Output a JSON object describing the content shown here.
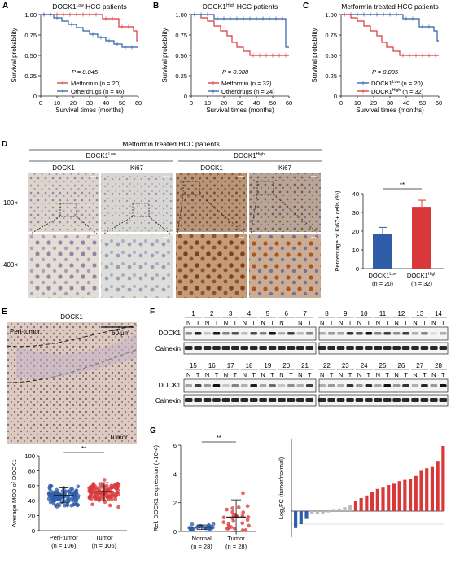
{
  "panels": {
    "A": "A",
    "B": "B",
    "C": "C",
    "D": "D",
    "E": "E",
    "F": "F",
    "G": "G"
  },
  "km": [
    {
      "letter": "A",
      "title": "DOCK1",
      "title_sup": "Low",
      "title_tail": " HCC patients",
      "ylabel": "Survival probability",
      "xlabel": "Survival times (months)",
      "xticks": [
        "0",
        "10",
        "20",
        "30",
        "40",
        "50",
        "60"
      ],
      "yticks": [
        "0",
        "0.25",
        "0.50",
        "0.75",
        "1.00"
      ],
      "pvalue": "P = 0.045",
      "legend": [
        {
          "name": "Metformin",
          "n": "(n = 20)",
          "color": "#d9383a"
        },
        {
          "name": "Otherdrugs",
          "n": "(n = 46)",
          "color": "#2f5da8"
        }
      ],
      "curves": [
        {
          "color": "#d9383a",
          "points": [
            [
              0,
              1.0
            ],
            [
              38,
              1.0
            ],
            [
              38,
              0.95
            ],
            [
              48,
              0.95
            ],
            [
              48,
              0.85
            ],
            [
              57,
              0.85
            ],
            [
              57,
              0.8
            ],
            [
              59,
              0.8
            ],
            [
              59,
              0.68
            ],
            [
              60,
              0.68
            ]
          ]
        },
        {
          "color": "#2f5da8",
          "points": [
            [
              0,
              1.0
            ],
            [
              8,
              1.0
            ],
            [
              8,
              0.96
            ],
            [
              13,
              0.96
            ],
            [
              13,
              0.92
            ],
            [
              17,
              0.92
            ],
            [
              17,
              0.88
            ],
            [
              22,
              0.88
            ],
            [
              22,
              0.84
            ],
            [
              26,
              0.84
            ],
            [
              26,
              0.8
            ],
            [
              30,
              0.8
            ],
            [
              30,
              0.76
            ],
            [
              35,
              0.76
            ],
            [
              35,
              0.72
            ],
            [
              40,
              0.72
            ],
            [
              40,
              0.68
            ],
            [
              45,
              0.68
            ],
            [
              45,
              0.64
            ],
            [
              50,
              0.64
            ],
            [
              50,
              0.6
            ],
            [
              60,
              0.6
            ]
          ]
        }
      ]
    },
    {
      "letter": "B",
      "title": "DOCK1",
      "title_sup": "High",
      "title_tail": " HCC patients",
      "ylabel": "Survival probability",
      "xlabel": "Survival times (months)",
      "xticks": [
        "0",
        "10",
        "20",
        "30",
        "40",
        "50",
        "60"
      ],
      "yticks": [
        "0",
        "0.25",
        "0.50",
        "0.75",
        "1.00"
      ],
      "pvalue": "P = 0.088",
      "legend": [
        {
          "name": "Metformin",
          "n": "(n = 32)",
          "color": "#d9383a"
        },
        {
          "name": "Otherdrugs",
          "n": "(n = 24)",
          "color": "#2f5da8"
        }
      ],
      "curves": [
        {
          "color": "#d9383a",
          "points": [
            [
              0,
              1.0
            ],
            [
              6,
              1.0
            ],
            [
              6,
              0.96
            ],
            [
              10,
              0.96
            ],
            [
              10,
              0.92
            ],
            [
              14,
              0.92
            ],
            [
              14,
              0.86
            ],
            [
              18,
              0.86
            ],
            [
              18,
              0.8
            ],
            [
              22,
              0.8
            ],
            [
              22,
              0.74
            ],
            [
              25,
              0.74
            ],
            [
              25,
              0.66
            ],
            [
              28,
              0.66
            ],
            [
              28,
              0.6
            ],
            [
              32,
              0.6
            ],
            [
              32,
              0.55
            ],
            [
              36,
              0.55
            ],
            [
              36,
              0.5
            ],
            [
              60,
              0.5
            ]
          ]
        },
        {
          "color": "#2f5da8",
          "points": [
            [
              0,
              1.0
            ],
            [
              14,
              1.0
            ],
            [
              14,
              0.95
            ],
            [
              58,
              0.95
            ],
            [
              58,
              0.6
            ],
            [
              60,
              0.6
            ]
          ]
        }
      ]
    },
    {
      "letter": "C",
      "title": "Metformin treated HCC patients",
      "title_sup": "",
      "title_tail": "",
      "ylabel": "Survival probability",
      "xlabel": "Survival times (months)",
      "xticks": [
        "0",
        "10",
        "20",
        "30",
        "40",
        "50",
        "60"
      ],
      "yticks": [
        "0",
        "0.25",
        "0.50",
        "0.75",
        "1.00"
      ],
      "pvalue": "P = 0.005",
      "legend": [
        {
          "name": "DOCK1",
          "sup": "Low",
          "n": "(n = 20)",
          "color": "#2f5da8"
        },
        {
          "name": "DOCK1",
          "sup": "High",
          "n": "(n = 32)",
          "color": "#d9383a"
        }
      ],
      "curves": [
        {
          "color": "#2f5da8",
          "points": [
            [
              0,
              1.0
            ],
            [
              38,
              1.0
            ],
            [
              38,
              0.95
            ],
            [
              48,
              0.95
            ],
            [
              48,
              0.85
            ],
            [
              57,
              0.85
            ],
            [
              57,
              0.8
            ],
            [
              59,
              0.8
            ],
            [
              59,
              0.68
            ],
            [
              60,
              0.68
            ]
          ]
        },
        {
          "color": "#d9383a",
          "points": [
            [
              0,
              1.0
            ],
            [
              6,
              1.0
            ],
            [
              6,
              0.96
            ],
            [
              10,
              0.96
            ],
            [
              10,
              0.92
            ],
            [
              14,
              0.92
            ],
            [
              14,
              0.86
            ],
            [
              18,
              0.86
            ],
            [
              18,
              0.8
            ],
            [
              22,
              0.8
            ],
            [
              22,
              0.74
            ],
            [
              25,
              0.74
            ],
            [
              25,
              0.66
            ],
            [
              28,
              0.66
            ],
            [
              28,
              0.6
            ],
            [
              32,
              0.6
            ],
            [
              32,
              0.55
            ],
            [
              36,
              0.55
            ],
            [
              36,
              0.5
            ],
            [
              60,
              0.5
            ]
          ]
        }
      ]
    }
  ],
  "panelD": {
    "title": "Metformin treated  HCC patients",
    "group_low": "DOCK1",
    "group_low_sup": "Low",
    "group_high": "DOCK1",
    "group_high_sup": "High",
    "cols": [
      "DOCK1",
      "Ki67",
      "DOCK1",
      "Ki67"
    ],
    "rows": [
      "100×",
      "400×"
    ],
    "colors": {
      "low_dock1": "#d8cfc6",
      "low_ki67": "#d6d3cf",
      "high_dock1": "#b89a7e",
      "high_ki67": "#b8a796"
    }
  },
  "chart_data": [
    {
      "type": "bar",
      "panel": "D",
      "ylabel": "Percentage of Ki67+ cells (%)",
      "yticks": [
        "0",
        "10",
        "20",
        "30",
        "40"
      ],
      "ylim": [
        0,
        40
      ],
      "categories": [
        "DOCK1Low (n = 20)",
        "DOCK1High (n = 32)"
      ],
      "category_lines": [
        {
          "name": "DOCK1",
          "sup": "Low",
          "n": "(n = 20)"
        },
        {
          "name": "DOCK1",
          "sup": "High",
          "n": "(n = 32)"
        }
      ],
      "values": [
        18.5,
        33
      ],
      "errors": [
        3.5,
        3.5
      ],
      "colors": [
        "#2f5da8",
        "#d9383a"
      ],
      "significance": "**"
    },
    {
      "type": "scatter",
      "panel": "E",
      "title": "DOCK1",
      "ylabel": "Average MOD of DOCK1",
      "yticks": [
        "0",
        "20",
        "40",
        "60",
        "80",
        "100"
      ],
      "ylim": [
        0,
        100
      ],
      "categories": [
        "Peri-tumor",
        "Tumor"
      ],
      "n_labels": [
        "(n = 106)",
        "(n = 106)"
      ],
      "means": [
        47,
        52
      ],
      "sd": [
        10,
        12
      ],
      "colors": [
        "#2f5da8",
        "#d9383a"
      ],
      "significance": "**"
    },
    {
      "type": "scatter",
      "panel": "G",
      "ylabel": "Rel. DOCK1 expression (×10-4)",
      "yticks": [
        "0",
        "2",
        "4",
        "6"
      ],
      "ylim": [
        0,
        6
      ],
      "categories": [
        "Normal",
        "Tumor"
      ],
      "n_labels": [
        "(n = 28)",
        "(n = 28)"
      ],
      "means": [
        0.3,
        1.0
      ],
      "sd": [
        0.15,
        1.2
      ],
      "colors": [
        "#2f5da8",
        "#d9383a"
      ],
      "significance": "**"
    },
    {
      "type": "bar",
      "panel": "G",
      "ylabel": "Log2FC (tumor/normal)",
      "values": [
        -1.3,
        -1.0,
        -0.6,
        -0.2,
        -0.2,
        -0.2,
        -0.1,
        0.1,
        0.2,
        0.3,
        0.5,
        0.8,
        1.0,
        1.2,
        1.5,
        1.7,
        1.8,
        2.0,
        2.1,
        2.3,
        2.4,
        2.5,
        2.7,
        3.1,
        3.3,
        3.4,
        3.8,
        5.0
      ],
      "colors": {
        "negative": "#2f5da8",
        "neutral": "#bbbbbb",
        "positive": "#d9383a"
      }
    }
  ],
  "panelE_image": {
    "peri_label": "Peri-tumor",
    "tumor_label": "Tumor",
    "scale": "60 μm"
  },
  "panelF": {
    "rows": [
      {
        "numbers": [
          "1",
          "2",
          "3",
          "4",
          "5",
          "6",
          "7",
          "8",
          "9",
          "10",
          "11",
          "12",
          "13",
          "14"
        ],
        "nt": [
          "N",
          "T"
        ]
      },
      {
        "numbers": [
          "15",
          "16",
          "17",
          "18",
          "19",
          "20",
          "21",
          "22",
          "23",
          "24",
          "25",
          "26",
          "27",
          "28"
        ],
        "nt": [
          "N",
          "T"
        ]
      }
    ],
    "labels": [
      "DOCK1",
      "Calnexin"
    ]
  }
}
